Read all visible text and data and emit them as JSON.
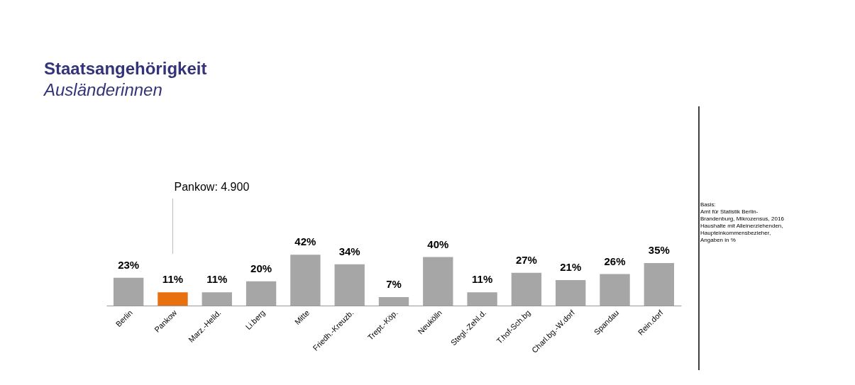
{
  "chart_data": {
    "type": "bar",
    "title": "Staatsangehörigkeit",
    "subtitle": "Ausländerinnen",
    "categories": [
      "Berlin",
      "Pankow",
      "Marz.-Helld.",
      "Li.berg",
      "Mitte",
      "Friedh.-Kreuzb.",
      "Trept.-Köp.",
      "Neukölln",
      "Stegl.-Zehl.d.",
      "T.hof-Sch.bg",
      "Charl.bg.-W.dorf",
      "Spandau",
      "Rein.dorf"
    ],
    "values": [
      23,
      11,
      11,
      20,
      42,
      34,
      7,
      40,
      11,
      27,
      21,
      26,
      35
    ],
    "value_labels": [
      "23%",
      "11%",
      "11%",
      "20%",
      "42%",
      "34%",
      "7%",
      "40%",
      "11%",
      "27%",
      "21%",
      "26%",
      "35%"
    ],
    "colors": [
      "#a6a6a6",
      "#e8700f",
      "#a6a6a6",
      "#a6a6a6",
      "#a6a6a6",
      "#a6a6a6",
      "#a6a6a6",
      "#a6a6a6",
      "#a6a6a6",
      "#a6a6a6",
      "#a6a6a6",
      "#a6a6a6",
      "#a6a6a6"
    ],
    "annotations": [
      "Pankow: 4.900",
      "Basis:\nAmt für Statistik Berlin-\nBrandenburg, Mikrozensus, 2016\nHaushalte mit Alleinerziehenden,\nHaupteinkommensbezieher,\nAngaben in %"
    ]
  }
}
